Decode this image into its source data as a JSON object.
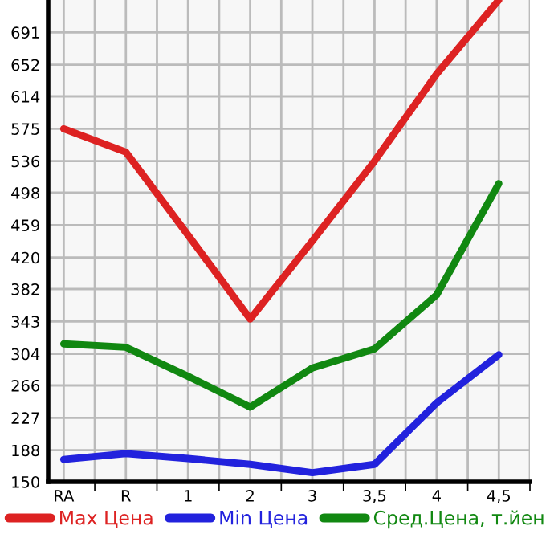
{
  "chart_data": {
    "type": "line",
    "categories": [
      "RA",
      "R",
      "1",
      "2",
      "3",
      "3,5",
      "4",
      "4,5"
    ],
    "series": [
      {
        "name": "Max Цена",
        "color": "#dd2222",
        "values": [
          575,
          547,
          447,
          346,
          440,
          536,
          641,
          730
        ]
      },
      {
        "name": "Min Цена",
        "color": "#2222dd",
        "values": [
          177,
          184,
          178,
          171,
          161,
          171,
          245,
          303
        ]
      },
      {
        "name": "Сред.Цена, т.йен",
        "color": "#118811",
        "values": [
          316,
          312,
          277,
          240,
          287,
          310,
          375,
          509
        ]
      }
    ],
    "ylim": [
      150,
      730
    ],
    "yticks": [
      150,
      188,
      227,
      266,
      304,
      343,
      382,
      420,
      459,
      498,
      536,
      575,
      614,
      652,
      691
    ],
    "grid": true,
    "legend": "bottom",
    "marker": "none",
    "line_style": "solid"
  }
}
